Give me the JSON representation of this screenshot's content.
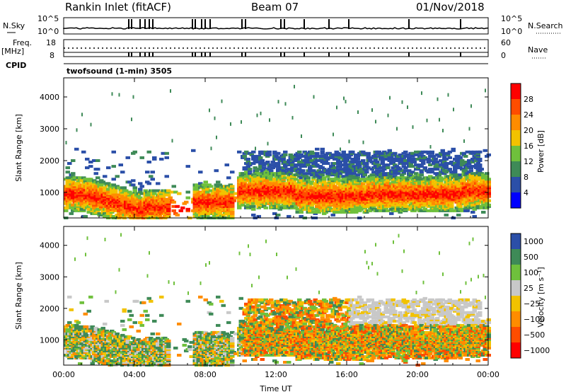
{
  "header": {
    "station": "Rankin Inlet (fitACF)",
    "beam": "Beam 07",
    "date": "01/Nov/2018"
  },
  "top_panels": {
    "nsky_label": "N.Sky",
    "nsearch_label": "N.Search",
    "noise_ticks": [
      "10^5",
      "10^0"
    ],
    "freq_label_1": "Freq.",
    "freq_label_2": "[MHz]",
    "freq_ticks_left": [
      "18",
      "8"
    ],
    "nave_label": "Nave",
    "nave_ticks_right": [
      "60",
      "0"
    ],
    "cpid_label": "CPID",
    "cpid_text": "twofsound (1-min) 3505"
  },
  "colors": {
    "power": [
      "#0000ff",
      "#2b4fa8",
      "#3e8a57",
      "#6fc03c",
      "#f2c200",
      "#ff8c00",
      "#ff4d00",
      "#ff0000"
    ],
    "velocity": [
      "#ff0000",
      "#ff4d00",
      "#ff8c00",
      "#f2c200",
      "#c8c8c8",
      "#6fc03c",
      "#3e8a57",
      "#2b4fa8"
    ]
  },
  "chart_data": [
    {
      "type": "heatmap",
      "name": "power",
      "ylabel": "Slant Range [km]",
      "yticks": [
        1000,
        2000,
        3000,
        4000
      ],
      "ylim": [
        200,
        4600
      ],
      "xticks": [
        "00:00",
        "04:00",
        "08:00",
        "12:00",
        "16:00",
        "20:00",
        "00:00"
      ],
      "xlim_hours": [
        0,
        24
      ],
      "colorbar_label": "Power [dB]",
      "colorbar_ticks": [
        "4",
        "8",
        "12",
        "16",
        "20",
        "24",
        "28"
      ]
    },
    {
      "type": "heatmap",
      "name": "velocity",
      "ylabel": "Slant Range [km]",
      "yticks": [
        1000,
        2000,
        3000,
        4000
      ],
      "ylim": [
        200,
        4600
      ],
      "xticks": [
        "00:00",
        "04:00",
        "08:00",
        "12:00",
        "16:00",
        "20:00",
        "00:00"
      ],
      "xlim_hours": [
        0,
        24
      ],
      "xlabel": "Time UT",
      "colorbar_label": "Velocity [m s⁻¹]",
      "colorbar_ticks": [
        "1000",
        "500",
        "100",
        "25",
        "−25",
        "−100",
        "−500",
        "−1000"
      ]
    }
  ]
}
